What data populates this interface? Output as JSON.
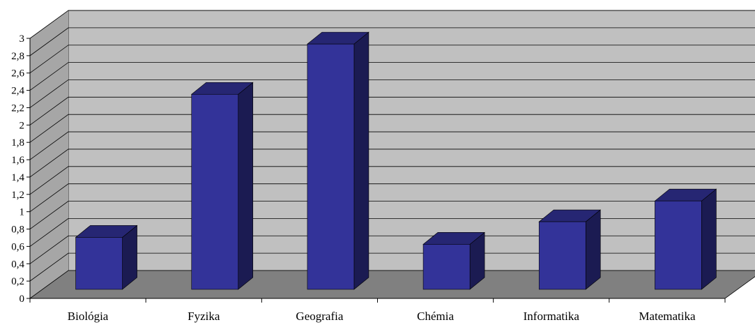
{
  "chart_data": {
    "type": "bar",
    "subtype": "3d-column",
    "title": "",
    "xlabel": "",
    "ylabel": "",
    "categories": [
      "Biológia",
      "Fyzika",
      "Geografia",
      "Chémia",
      "Informatika",
      "Matematika"
    ],
    "values": [
      0.6,
      2.25,
      2.83,
      0.52,
      0.78,
      1.02
    ],
    "ylim": [
      0,
      3
    ],
    "y_ticks": [
      "0",
      "0,2",
      "0,4",
      "0,6",
      "0,8",
      "1",
      "1,2",
      "1,4",
      "1,6",
      "1,8",
      "2",
      "2,2",
      "2,4",
      "2,6",
      "2,8",
      "3"
    ],
    "grid": true,
    "legend": "none",
    "colors": {
      "bar_front": "#333399",
      "bar_top": "#262673",
      "bar_side": "#1b1b52",
      "wall": "#c0c0c0",
      "side_wall": "#a6a6a6",
      "floor": "#808080",
      "gridline": "#000000"
    }
  }
}
